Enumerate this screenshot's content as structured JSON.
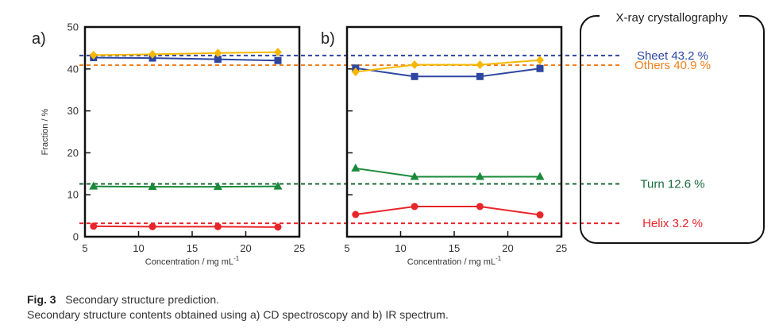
{
  "figure": {
    "fig_label": "Fig. 3",
    "caption_title": "Secondary structure prediction.",
    "caption_text": "Secondary structure contents obtained using a) CD spectroscopy and b) IR spectrum."
  },
  "colors": {
    "sheet": "#2e46a0",
    "others": "#f5b800",
    "turn": "#1a8a3a",
    "helix": "#e8252a",
    "ref_sheet": "#2e46a0",
    "ref_others": "#f08020",
    "ref_turn": "#1a6a3a",
    "ref_helix": "#e8252a"
  },
  "chart_data": [
    {
      "type": "line",
      "panel": "a)",
      "xlabel": "Concentration / mg mL",
      "xlabel_sup": "-1",
      "ylabel": "Fraction / %",
      "xlim": [
        5,
        25
      ],
      "ylim": [
        0,
        50
      ],
      "xticks": [
        5,
        10,
        15,
        20,
        25
      ],
      "yticks": [
        0,
        10,
        20,
        30,
        40,
        50
      ],
      "series": [
        {
          "name": "Sheet",
          "marker": "square",
          "x": [
            5.8,
            11.3,
            17.4,
            23.0
          ],
          "values": [
            42.7,
            42.6,
            42.3,
            42.0
          ]
        },
        {
          "name": "Others",
          "marker": "diamond",
          "x": [
            5.8,
            11.3,
            17.4,
            23.0
          ],
          "values": [
            43.3,
            43.5,
            43.8,
            44.0
          ]
        },
        {
          "name": "Turn",
          "marker": "triangle",
          "x": [
            5.8,
            11.3,
            17.4,
            23.0
          ],
          "values": [
            12.0,
            11.9,
            11.9,
            12.0
          ]
        },
        {
          "name": "Helix",
          "marker": "circle",
          "x": [
            5.8,
            11.3,
            17.4,
            23.0
          ],
          "values": [
            2.5,
            2.4,
            2.4,
            2.3
          ]
        }
      ]
    },
    {
      "type": "line",
      "panel": "b)",
      "xlabel": "Concentration / mg mL",
      "xlabel_sup": "-1",
      "xlim": [
        5,
        25
      ],
      "ylim": [
        0,
        50
      ],
      "xticks": [
        5,
        10,
        15,
        20,
        25
      ],
      "series": [
        {
          "name": "Sheet",
          "marker": "square",
          "x": [
            5.8,
            11.3,
            17.4,
            23.0
          ],
          "values": [
            40.2,
            38.2,
            38.2,
            40.1
          ]
        },
        {
          "name": "Others",
          "marker": "diamond",
          "x": [
            5.8,
            11.3,
            17.4,
            23.0
          ],
          "values": [
            39.3,
            41.0,
            41.0,
            42.1
          ]
        },
        {
          "name": "Turn",
          "marker": "triangle",
          "x": [
            5.8,
            11.3,
            17.4,
            23.0
          ],
          "values": [
            16.3,
            14.3,
            14.3,
            14.3
          ]
        },
        {
          "name": "Helix",
          "marker": "circle",
          "x": [
            5.8,
            11.3,
            17.4,
            23.0
          ],
          "values": [
            5.3,
            7.2,
            7.2,
            5.2
          ]
        }
      ]
    }
  ],
  "reference": {
    "title": "X-ray crystallography",
    "lines": [
      {
        "key": "sheet",
        "label": "Sheet 43.2 %",
        "value": 43.2
      },
      {
        "key": "others",
        "label": "Others 40.9 %",
        "value": 40.9
      },
      {
        "key": "turn",
        "label": "Turn 12.6 %",
        "value": 12.6
      },
      {
        "key": "helix",
        "label": "Helix 3.2 %",
        "value": 3.2
      }
    ]
  }
}
